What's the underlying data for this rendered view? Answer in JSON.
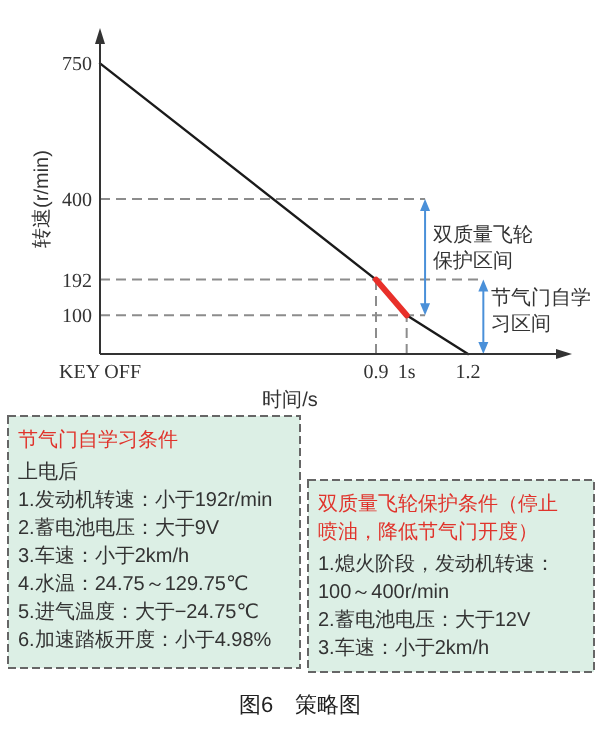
{
  "chart_data": {
    "type": "line",
    "xlabel": "时间/s",
    "ylabel": "转速(r/min)",
    "series": [
      {
        "x": [
          0,
          0.9,
          1,
          1.2
        ],
        "values": [
          750,
          192,
          100,
          0
        ],
        "color": "#1a1a1a"
      },
      {
        "x": [
          0.9,
          1
        ],
        "values": [
          192,
          100
        ],
        "color": "#e8302a"
      }
    ],
    "xlim": [
      0,
      1.5
    ],
    "xticks": [
      {
        "value": 0,
        "label": "KEY OFF"
      },
      0.9,
      {
        "value": 1,
        "label": "1s"
      },
      1.2
    ],
    "ylim": [
      0,
      800
    ],
    "yticks": [
      100,
      192,
      400,
      750
    ],
    "ref_lines": [
      {
        "axis": "y",
        "value": 400,
        "color": "#8c8c8c",
        "line_style": "dashed"
      },
      {
        "axis": "y",
        "value": 192,
        "color": "#8c8c8c",
        "line_style": "dashed"
      },
      {
        "axis": "y",
        "value": 100,
        "color": "#8c8c8c",
        "line_style": "dashed"
      },
      {
        "axis": "x",
        "value": 0.9,
        "color": "#8c8c8c",
        "line_style": "dashed"
      },
      {
        "axis": "x",
        "value": 1,
        "color": "#8c8c8c",
        "line_style": "dashed"
      }
    ],
    "annotations": [
      {
        "text": "双质量飞轮保护区间",
        "x": 1.06,
        "y": 400
      },
      {
        "text": "节气门自学习区间",
        "x": 1.25,
        "y": 192
      },
      "节气门自学习条件",
      "上电后\n1.发动机转速：小于192r/min\n2.蓄电池电压：大于9V\n3.车速：小于2km/h\n4.水温：24.75～129.75℃\n5.进气温度：大于−24.75℃\n6.加速踏板开度：小于4.98%",
      "双质量飞轮保护条件（停止喷油，降低节气门开度）",
      "1.熄火阶段，发动机转速：\n100～400r/min\n2.蓄电池电压：大于12V\n3.车速：小于2km/h",
      "图6　策略图"
    ]
  }
}
